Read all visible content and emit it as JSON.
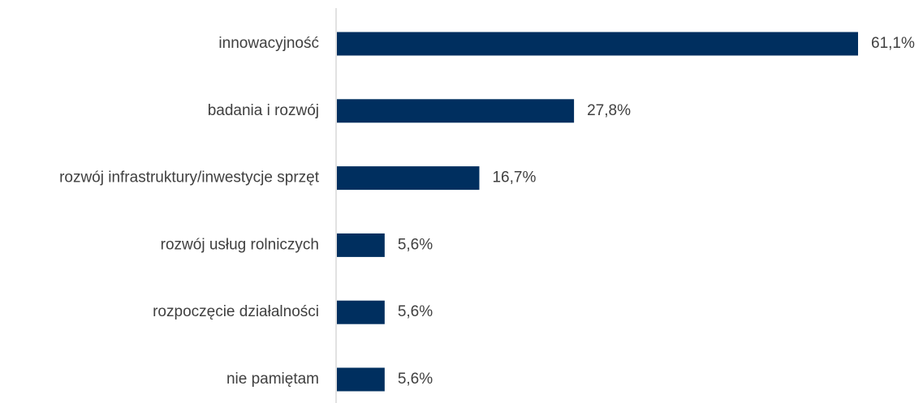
{
  "chart_data": {
    "type": "bar",
    "orientation": "horizontal",
    "title": "",
    "xlabel": "",
    "ylabel": "",
    "categories": [
      "innowacyjność",
      "badania i rozwój",
      "rozwój infrastruktury/inwestycje sprzęt",
      "rozwój usług rolniczych",
      "rozpoczęcie działalności",
      "nie pamiętam"
    ],
    "values": [
      61.1,
      27.8,
      16.7,
      5.6,
      5.6,
      5.6
    ],
    "value_labels": [
      "61,1%",
      "27,8%",
      "16,7%",
      "5,6%",
      "5,6%",
      "5,6%"
    ],
    "bar_color": "#002f5f",
    "xlim": [
      0,
      61.1
    ],
    "grid": false,
    "legend": "none"
  }
}
